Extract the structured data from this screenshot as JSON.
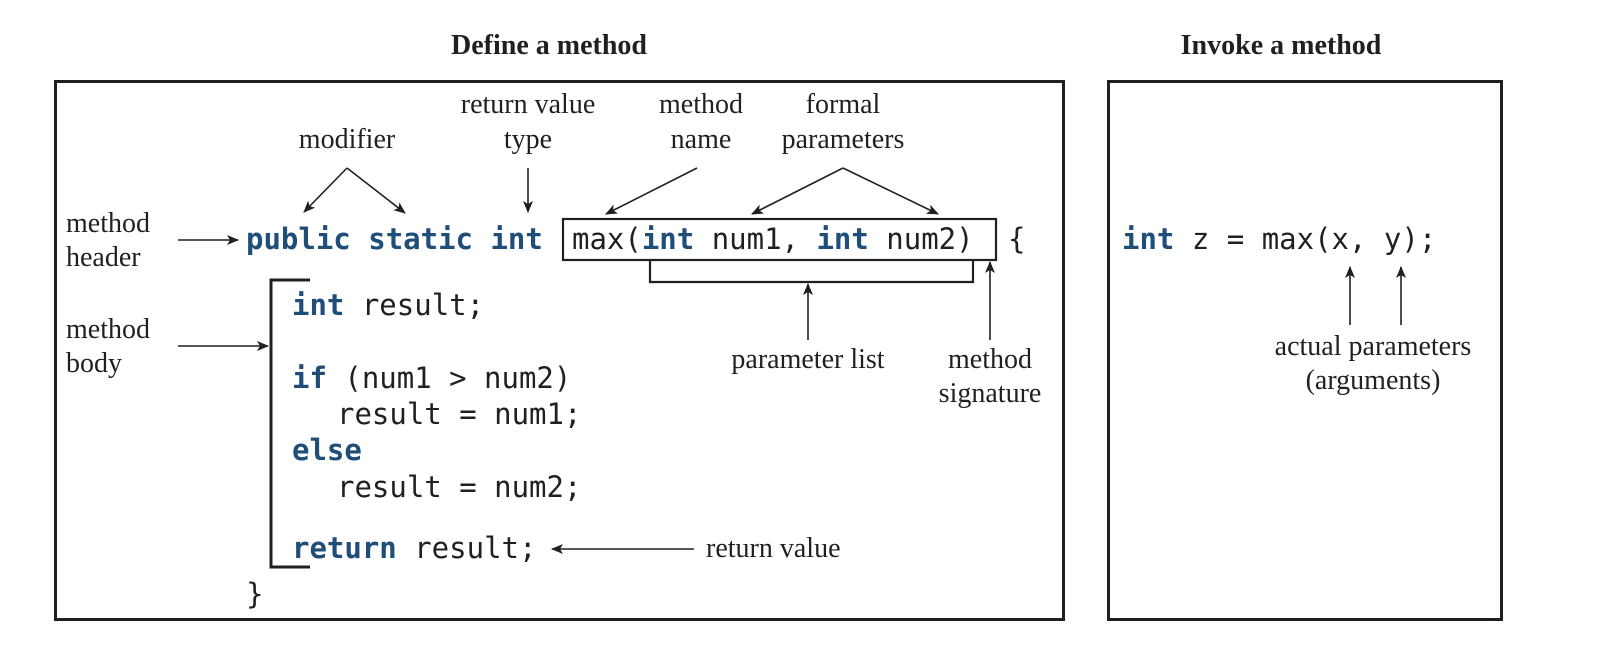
{
  "define": {
    "heading": "Define a method",
    "labels": {
      "modifier": "modifier",
      "return_type_1": "return value",
      "return_type_2": "type",
      "method_name_1": "method",
      "method_name_2": "name",
      "formal_params_1": "formal",
      "formal_params_2": "parameters",
      "method_header_1": "method",
      "method_header_2": "header",
      "method_body_1": "method",
      "method_body_2": "body",
      "parameter_list": "parameter list",
      "method_signature_1": "method",
      "method_signature_2": "signature",
      "return_value": "return value"
    },
    "code": {
      "kw_public": "public",
      "kw_static": "static",
      "kw_int": "int",
      "sig_max": "max(",
      "sig_kw_int1": "int",
      "sig_num1": " num1, ",
      "sig_kw_int2": "int",
      "sig_num2": " num2)",
      "open_brace": "{",
      "l1_kw": "int",
      "l1_rest": " result;",
      "l2_kw": "if",
      "l2_rest": " (num1 > num2)",
      "l3": "result = num1;",
      "l4_kw": "else",
      "l5": "result = num2;",
      "l6_kw": "return",
      "l6_rest": " result;",
      "close_brace": "}"
    }
  },
  "invoke": {
    "heading": "Invoke a method",
    "code_kw": "int",
    "code_rest": " z = max(x, y);",
    "label_1": "actual parameters",
    "label_2": "(arguments)"
  },
  "colors": {
    "ink": "#231f20",
    "keyword": "#1f4e79"
  }
}
